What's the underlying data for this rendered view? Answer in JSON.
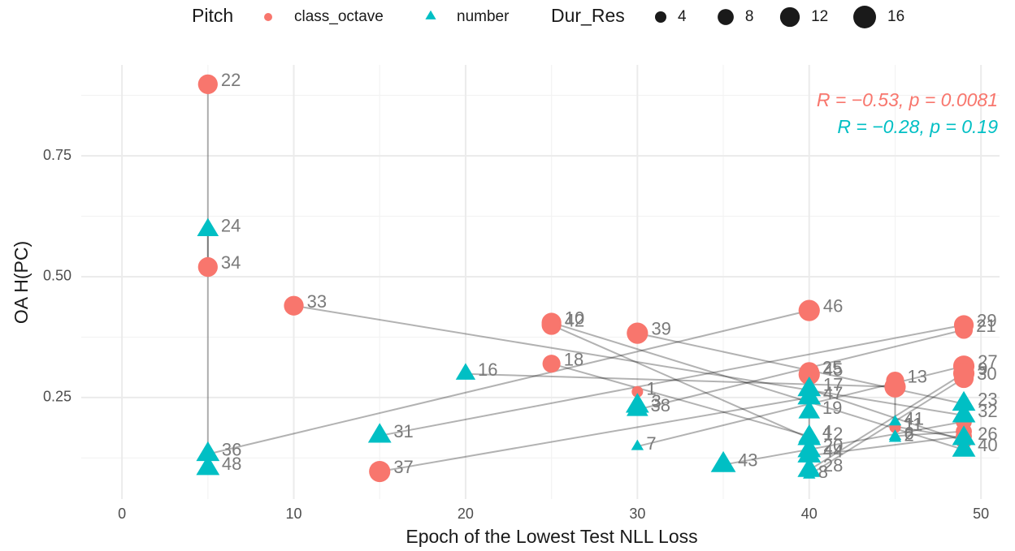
{
  "chart_data": {
    "type": "scatter",
    "x_label": "Epoch of the Lowest Test NLL Loss",
    "y_label": "OA H(PC)",
    "legend_title": "Pitch",
    "size_legend": {
      "title": "Dur_Res",
      "values": [
        4,
        8,
        12,
        16
      ]
    },
    "annotations": [
      {
        "text": "R = −0.53, p = 0.0081",
        "color": "#F8766D"
      },
      {
        "text": "R = −0.28, p = 0.19",
        "color": "#00BFC4"
      }
    ],
    "xlim": [
      -2.37,
      51.08
    ],
    "xticks": [
      0,
      10,
      20,
      30,
      40,
      50
    ],
    "ylim": [
      0.04,
      0.938
    ],
    "yticks": [
      {
        "value": 0.25,
        "label": "0.25"
      },
      {
        "value": 0.5,
        "label": "0.50"
      },
      {
        "value": 0.75,
        "label": "0.75"
      }
    ],
    "grid": true,
    "series": [
      {
        "name": "class_octave",
        "color": "#F8766D",
        "marker": "circle",
        "x": [
          5,
          5,
          10,
          25,
          25,
          25,
          30,
          30,
          15,
          40,
          40,
          40,
          45,
          45,
          49,
          49,
          49,
          49,
          49,
          45,
          49,
          49,
          49,
          49,
          45
        ],
        "values": [
          0.898,
          0.52,
          0.44,
          0.405,
          0.4,
          0.32,
          0.383,
          0.262,
          0.097,
          0.43,
          0.303,
          0.298,
          0.285,
          0.188,
          0.4,
          0.39,
          0.315,
          0.3,
          0.29,
          0.272,
          0.2,
          0.18,
          0.16,
          0.17,
          0.19
        ],
        "sizes": [
          12,
          12,
          12,
          12,
          12,
          10,
          14,
          4,
          14,
          14,
          12,
          14,
          10,
          4,
          12,
          10,
          14,
          14,
          12,
          14,
          8,
          8,
          8,
          8,
          4
        ],
        "labels": [
          "22",
          "34",
          "33",
          "10",
          "42",
          "18",
          "39",
          "1",
          "37",
          "46",
          "25",
          "45",
          "13",
          "11",
          "29",
          "21",
          "27",
          "9",
          "30",
          null,
          null,
          null,
          null,
          null,
          null
        ]
      },
      {
        "name": "number",
        "color": "#00BFC4",
        "marker": "triangle",
        "x": [
          5,
          5,
          49,
          49,
          40,
          40,
          49,
          30,
          40,
          5,
          40,
          40,
          45,
          45,
          15,
          30,
          30,
          40,
          40,
          20,
          35,
          45,
          40,
          40,
          49
        ],
        "values": [
          0.104,
          0.597,
          0.213,
          0.142,
          0.166,
          0.17,
          0.237,
          0.233,
          0.25,
          0.133,
          0.141,
          0.22,
          0.166,
          0.2,
          0.171,
          0.225,
          0.149,
          0.1,
          0.09,
          0.299,
          0.111,
          0.17,
          0.267,
          0.13,
          0.166
        ],
        "sizes": [
          14,
          12,
          14,
          14,
          14,
          12,
          14,
          14,
          14,
          14,
          14,
          12,
          4,
          4,
          14,
          12,
          4,
          14,
          4,
          10,
          16,
          4,
          14,
          14,
          14
        ],
        "labels": [
          "48",
          "24",
          "32",
          "40",
          "12",
          "4",
          "23",
          "3",
          "47",
          "36",
          "20",
          "19",
          "2",
          "41",
          "31",
          "38",
          "7",
          "28",
          "8",
          "16",
          "43",
          "6",
          "17",
          "44",
          "26"
        ]
      }
    ]
  }
}
